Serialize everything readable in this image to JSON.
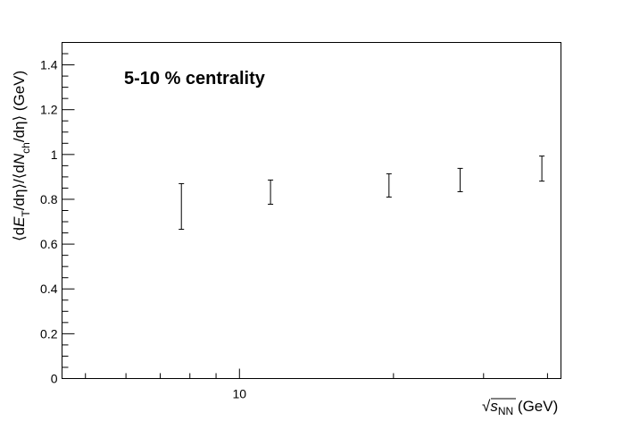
{
  "chart_data": {
    "type": "errorbar",
    "annotation": "5-10 % centrality",
    "ylabel_parts": [
      "⟨d",
      "E",
      "T",
      "/dη⟩/⟨d",
      "N",
      "ch",
      "/dη⟩ (GeV)"
    ],
    "xlabel_parts": [
      "√",
      "s",
      "NN",
      " (GeV)"
    ],
    "x": [
      7.7,
      11.5,
      19.6,
      27,
      39
    ],
    "values": [
      0.768,
      0.832,
      0.862,
      0.886,
      0.937
    ],
    "errors": [
      0.102,
      0.054,
      0.052,
      0.052,
      0.056
    ],
    "color": "#000000",
    "xscale": "log",
    "xlim": [
      4.5,
      42.5
    ],
    "xticks": [
      10
    ],
    "xminorticks": [
      5,
      6,
      7,
      8,
      9,
      20,
      30,
      40
    ],
    "ylim": [
      0,
      1.5
    ],
    "yticks": [
      0,
      0.2,
      0.4,
      0.6,
      0.8,
      1,
      1.2,
      1.4
    ],
    "yminorticks": [
      0.05,
      0.1,
      0.15,
      0.25,
      0.3,
      0.35,
      0.45,
      0.5,
      0.55,
      0.65,
      0.7,
      0.75,
      0.85,
      0.9,
      0.95,
      1.05,
      1.1,
      1.15,
      1.25,
      1.3,
      1.35,
      1.45
    ]
  }
}
